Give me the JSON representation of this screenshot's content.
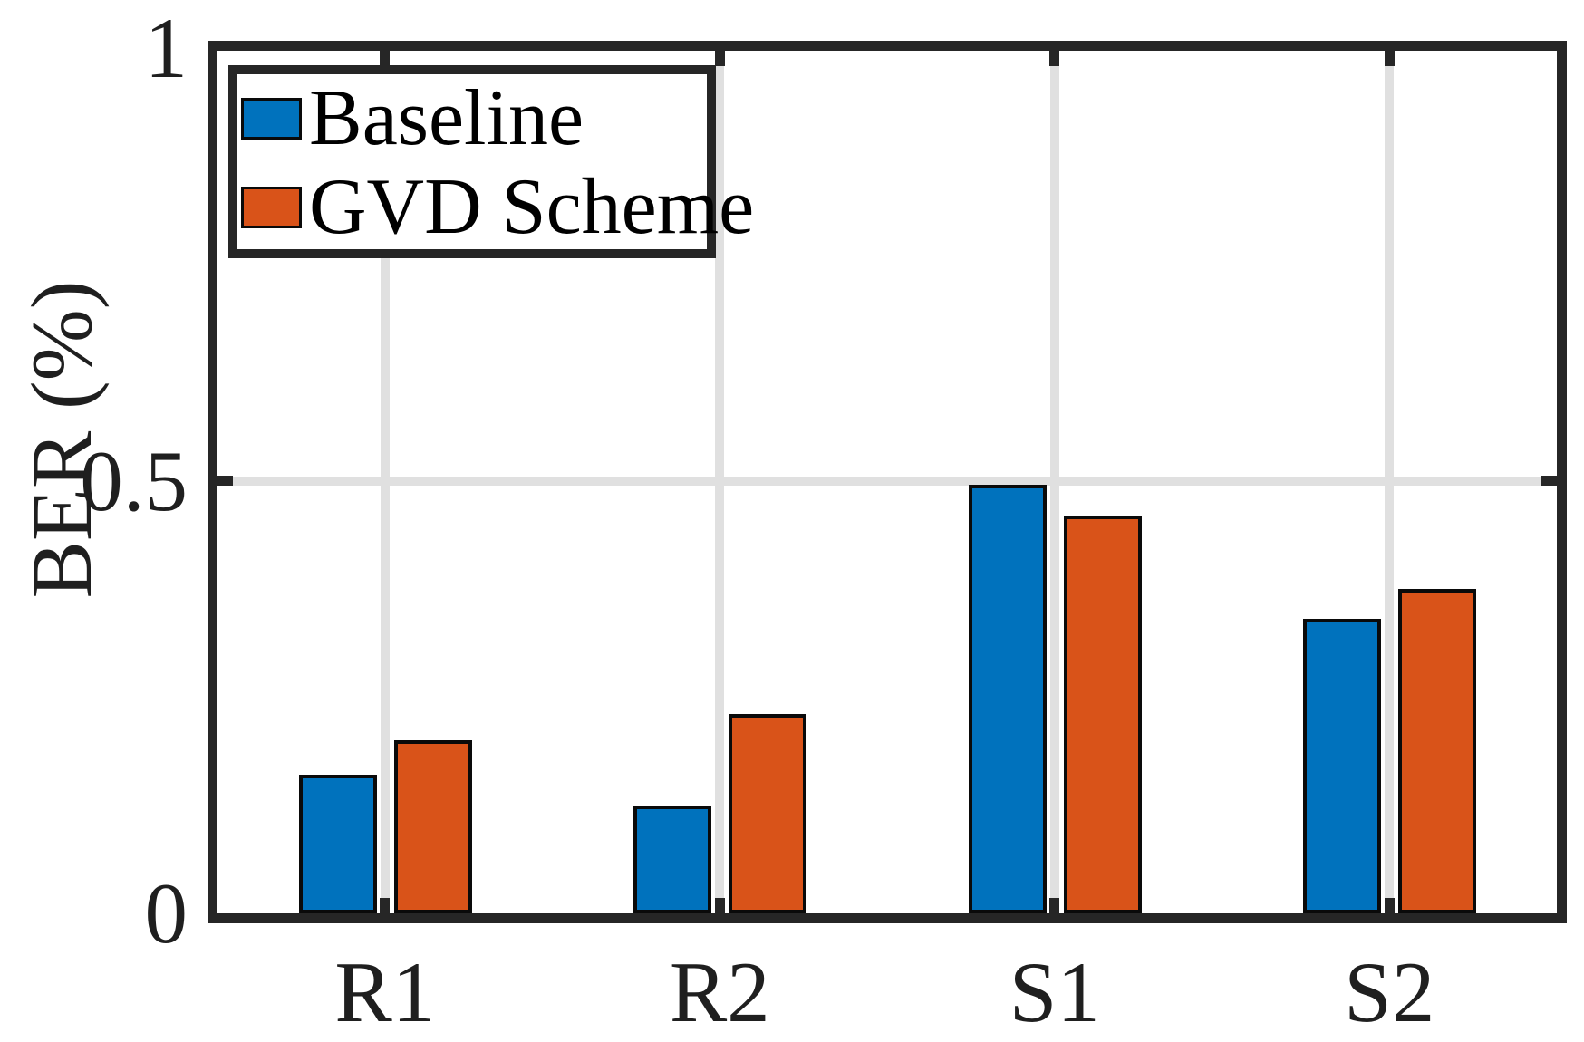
{
  "chart_data": {
    "type": "bar",
    "categories": [
      "R1",
      "R2",
      "S1",
      "S2"
    ],
    "series": [
      {
        "name": "Baseline",
        "color": "#0072BD",
        "values": [
          0.16,
          0.125,
          0.495,
          0.34
        ]
      },
      {
        "name": "GVD Scheme",
        "color": "#D95319",
        "values": [
          0.2,
          0.23,
          0.46,
          0.375
        ]
      }
    ],
    "title": "",
    "xlabel": "",
    "ylabel": "BER (%)",
    "ylim": [
      0,
      1
    ],
    "yticks": [
      {
        "value": 0,
        "label": "0"
      },
      {
        "value": 0.5,
        "label": "0.5"
      },
      {
        "value": 1,
        "label": "1"
      }
    ],
    "grid": "on",
    "legend_position": "top-left",
    "bar_edge_color": "#000000"
  },
  "style": {
    "axis_color": "#262626",
    "grid_color": "#e0e0e0",
    "text_color": "#1f1f1f",
    "background": "#ffffff"
  }
}
